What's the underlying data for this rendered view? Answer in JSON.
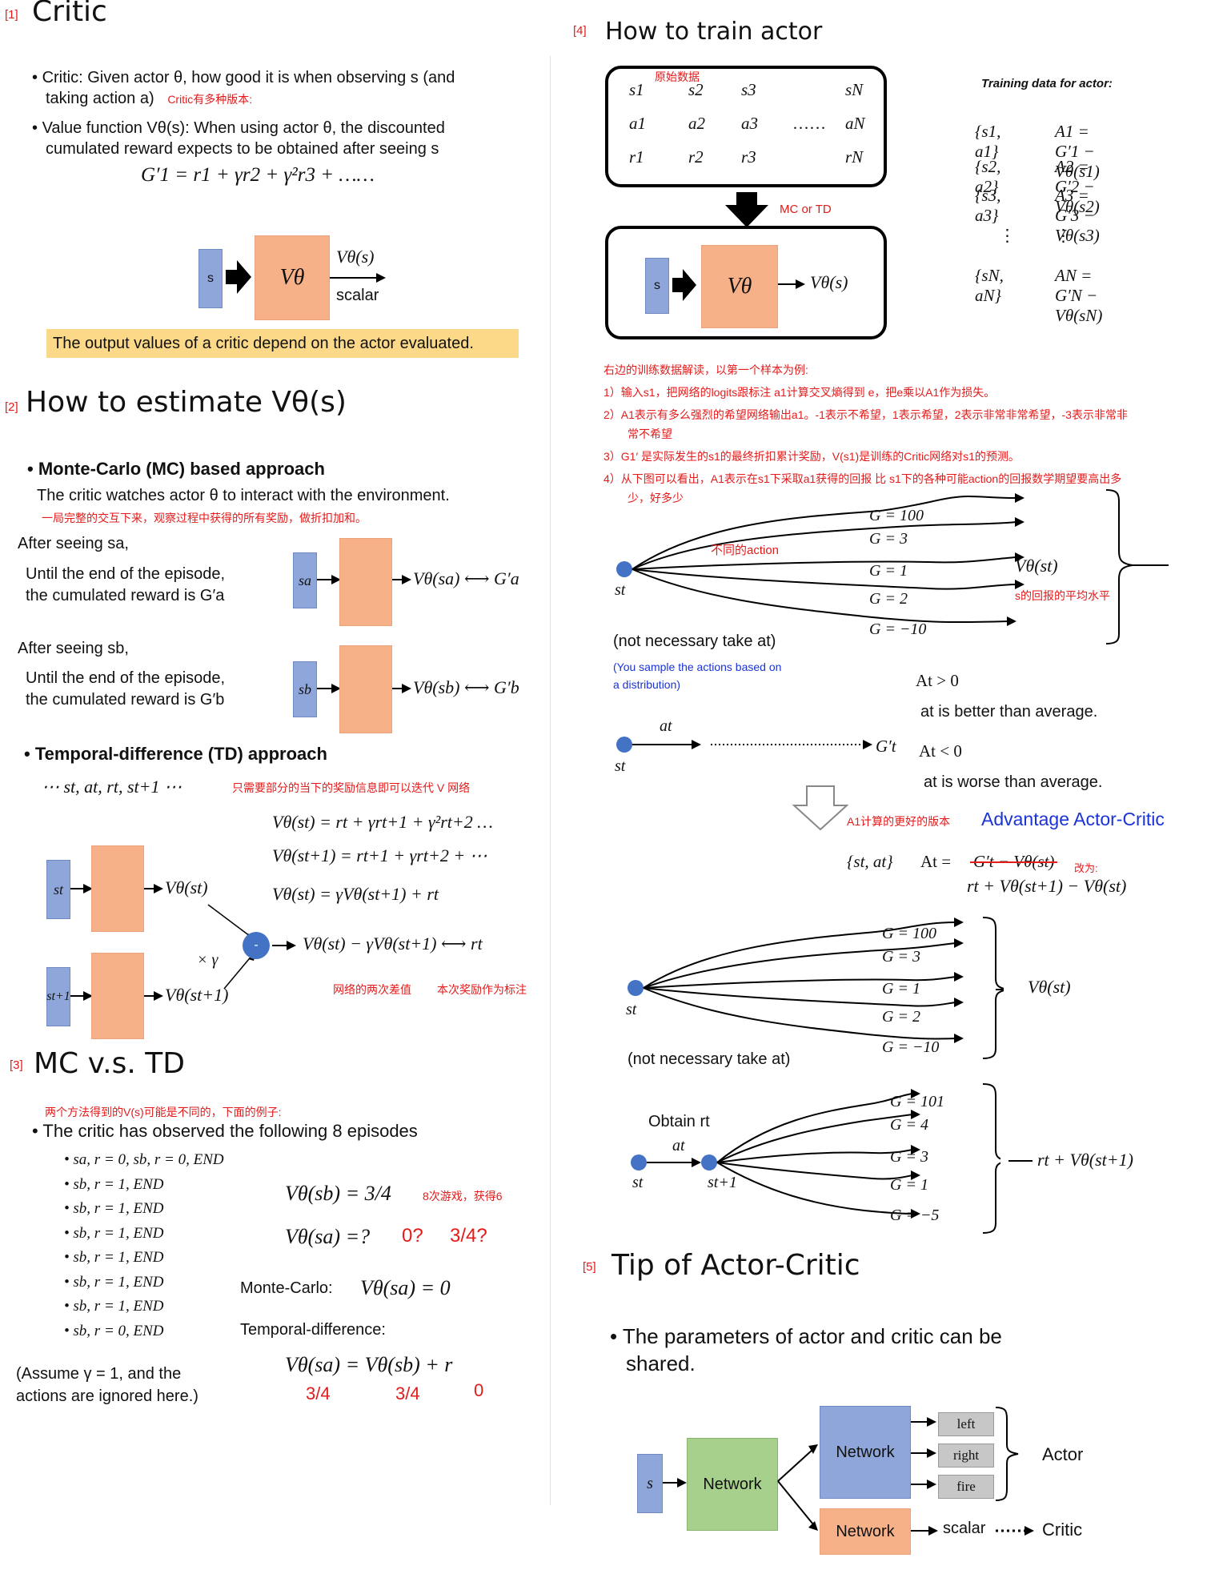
{
  "s1": {
    "num": "[1]",
    "title": "Critic",
    "b1_line1": "Critic: Given actor θ, how good it is when observing s (and",
    "b1_line2": "taking action a)",
    "b1_note": "Critic有多种版本:",
    "b2_line1": "Value function Vθ(s): When using actor θ, the discounted",
    "b2_line2": "cumulated reward expects to be obtained after seeing s",
    "formula": "G′1 = r1 + γr2 + γ²r3 + ……",
    "s_label": "s",
    "v_label": "Vθ",
    "out_label": "Vθ(s)",
    "scalar": "scalar",
    "highlight": "The output values of a critic depend on the actor evaluated."
  },
  "s2": {
    "num": "[2]",
    "title": "How to estimate Vθ(s)",
    "mc_head": "Monte-Carlo (MC) based approach",
    "mc_sub": "The critic watches actor θ to interact with the environment.",
    "mc_note": "一局完整的交互下来，观察过程中获得的所有奖励，做折扣加和。",
    "after_a": "After seeing sa,",
    "until_a1": "Until the end of the episode,",
    "until_a2": "the cumulated reward is G′a",
    "sa": "sa",
    "out_a": "Vθ(sa) ⟷ G′a",
    "after_b": "After seeing sb,",
    "until_b1": "Until the end of the episode,",
    "until_b2": "the cumulated reward is G′b",
    "sb": "sb",
    "out_b": "Vθ(sb) ⟷ G′b",
    "td_head": "Temporal-difference (TD) approach",
    "td_seq": "⋯ st, at, rt, st+1 ⋯",
    "td_note": "只需要部分的当下的奖励信息即可以迭代 V 网络",
    "eq1": "Vθ(st) = rt + γrt+1 + γ²rt+2 …",
    "eq2": "Vθ(st+1) = rt+1 + γrt+2 + ⋯",
    "eq3": "Vθ(st) = γVθ(st+1) + rt",
    "st": "st",
    "st1": "st+1",
    "out_st": "Vθ(st)",
    "out_st1": "Vθ(st+1)",
    "times_g": "× γ",
    "minus": "-",
    "diff": "Vθ(st) − γVθ(st+1) ⟷ rt",
    "note_diff": "网络的两次差值",
    "note_label": "本次奖励作为标注"
  },
  "s3": {
    "num": "[3]",
    "title": "MC v.s. TD",
    "note": "两个方法得到的V(s)可能是不同的，下面的例子:",
    "head": "The critic has observed the following 8 episodes",
    "episodes": [
      "sa, r = 0, sb, r = 0, END",
      "sb, r = 1, END",
      "sb, r = 1, END",
      "sb, r = 1, END",
      "sb, r = 1, END",
      "sb, r = 1, END",
      "sb, r = 1, END",
      "sb, r = 0, END"
    ],
    "assume1": "(Assume γ = 1, and the",
    "assume2": "actions are ignored here.)",
    "vsb": "Vθ(sb) = 3/4",
    "vsb_note": "8次游戏，获得6",
    "vsa": "Vθ(sa) =?",
    "q1": "0?",
    "q2": "3/4?",
    "mc_label": "Monte-Carlo:",
    "mc_eq": "Vθ(sa) = 0",
    "td_label": "Temporal-difference:",
    "td_eq": "Vθ(sa) = Vθ(sb) + r",
    "td_v1": "3/4",
    "td_v2": "3/4",
    "td_v3": "0"
  },
  "s4": {
    "num": "[4]",
    "title": "How to train actor",
    "raw_note": "原始数据",
    "row_s": [
      "s1",
      "s2",
      "s3",
      "sN"
    ],
    "row_a": [
      "a1",
      "a2",
      "a3",
      "aN"
    ],
    "row_r": [
      "r1",
      "r2",
      "r3",
      "rN"
    ],
    "dots": "……",
    "mc_or_td": "MC or TD",
    "s_label": "s",
    "v_label": "Vθ",
    "out_label": "Vθ(s)",
    "td_title": "Training data for actor:",
    "td_pairs": [
      "{s1, a1}",
      "{s2, a2}",
      "{s3, a3}",
      "{sN, aN}"
    ],
    "td_adv": [
      "A1 = G′1 − Vθ(s1)",
      "A2 = G′2 − Vθ(s2)",
      "A3 = G′3 − Vθ(s3)",
      "AN = G′N − Vθ(sN)"
    ],
    "notes": [
      "右边的训练数据解读，以第一个样本为例:",
      "1）输入s1，把网络的logits跟标注 a1计算交叉熵得到 e，把e乘以A1作为损失。",
      "2）A1表示有多么强烈的希望网络输出a1。-1表示不希望，1表示希望，2表示非常非常希望，-3表示非常非",
      "常不希望",
      "3）G1′ 是实际发生的s1的最终折扣累计奖励，V(s1)是训练的Critic网络对s1的预测。",
      "4）从下图可以看出，A1表示在s1下采取a1获得的回报 比 s1下的各种可能action的回报数学期望要高出多",
      "少，好多少"
    ],
    "g_values": [
      "G = 100",
      "G = 3",
      "G = 1",
      "G = 2",
      "G = −10"
    ],
    "diff_action": "不同的action",
    "vst": "Vθ(st)",
    "vst_note": "s的回报的平均水平",
    "st": "st",
    "not_nec": "(not necessary take at)",
    "sample1": "(You sample the actions based on",
    "sample2": "a distribution)",
    "at_pos": "At > 0",
    "better": "at is better than average.",
    "at_neg": "At < 0",
    "worse": "at is worse than average.",
    "at": "at",
    "gt": "G′t",
    "a2c_note": "A1计算的更好的版本",
    "a2c_title": "Advantage Actor-Critic",
    "pair": "{st, at}",
    "at_eq": "At =",
    "struck": "G′t − Vθ(st)",
    "change": "改为:",
    "new_eq": "rt + Vθ(st+1) − Vθ(st)",
    "not_nec2": "(not necessary take at)",
    "obtain": "Obtain rt",
    "st1": "st+1",
    "g2_values": [
      "G = 101",
      "G = 4",
      "G = 3",
      "G = 1",
      "G = −5"
    ],
    "rt_v": "rt + Vθ(st+1)"
  },
  "s5": {
    "num": "[5]",
    "title": "Tip of Actor-Critic",
    "bullet1": "The parameters of actor and critic can be",
    "bullet2": "shared.",
    "s_label": "s",
    "network": "Network",
    "network_actor": "Network",
    "network_critic": "Network",
    "actions": [
      "left",
      "right",
      "fire"
    ],
    "actor": "Actor",
    "scalar": "scalar",
    "critic": "Critic"
  }
}
